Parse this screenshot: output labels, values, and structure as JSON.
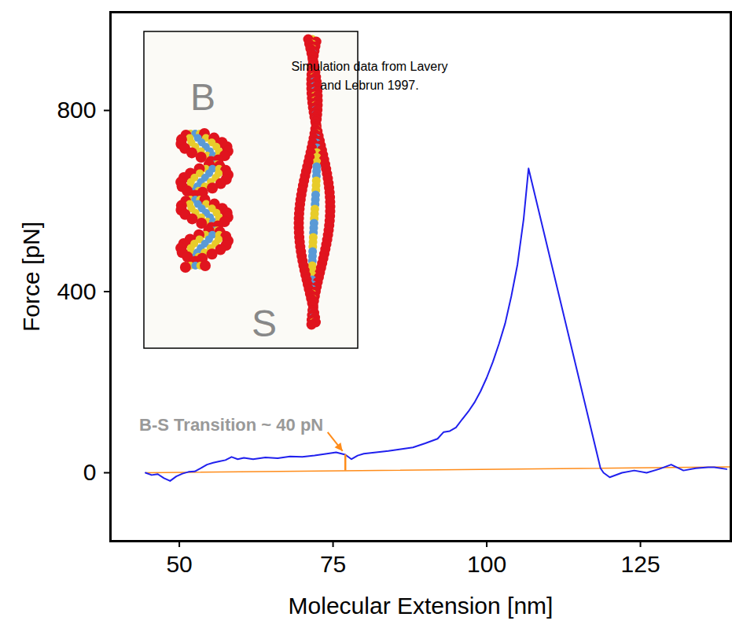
{
  "chart_data": {
    "type": "line",
    "x_label": "Molecular Extension [nm]",
    "y_label": "Force [pN]",
    "xlim": [
      38.8,
      139.7
    ],
    "ylim": [
      -151,
      1017
    ],
    "xticks": [
      50,
      75,
      100,
      125
    ],
    "yticks": [
      0,
      400,
      800
    ],
    "series": [
      {
        "color": "#2020ee",
        "x": [
          44.5,
          45.5,
          46.5,
          47.5,
          48.5,
          49.5,
          50.5,
          51.5,
          52.5,
          53.5,
          54.5,
          55.5,
          56.5,
          57.5,
          58.5,
          59.5,
          60.5,
          62,
          64,
          66,
          68,
          70,
          72,
          74,
          75.5,
          77,
          78,
          79,
          80,
          82,
          84,
          86,
          88,
          90,
          92,
          93,
          94,
          95,
          96,
          97,
          98,
          99,
          100,
          101,
          102,
          103,
          104,
          105,
          106,
          106.8,
          118.5,
          119,
          120,
          122,
          124,
          126,
          128,
          130,
          132,
          134,
          136,
          137,
          139
        ],
        "values": [
          0,
          -5,
          -3,
          -12,
          -18,
          -8,
          -2,
          2,
          3,
          10,
          18,
          22,
          25,
          28,
          35,
          30,
          33,
          30,
          34,
          32,
          36,
          35,
          38,
          42,
          45,
          40,
          30,
          38,
          42,
          45,
          48,
          52,
          56,
          65,
          75,
          90,
          92,
          100,
          118,
          135,
          155,
          180,
          210,
          245,
          285,
          330,
          390,
          460,
          560,
          672,
          10,
          0,
          -10,
          0,
          5,
          0,
          8,
          18,
          5,
          10,
          12,
          12,
          8
        ]
      },
      {
        "color": "#ff8c1a",
        "x": [
          44.5,
          139.7
        ],
        "values": [
          0,
          13
        ]
      }
    ],
    "annotations": [
      {
        "text": "B-S Transition ~ 40 pN",
        "x": 77,
        "y": 40,
        "color": "#ff8c1a"
      }
    ],
    "note": "Simulation data from Lavery and Lebrun 1997.",
    "inset_labels": [
      "B",
      "S"
    ]
  }
}
